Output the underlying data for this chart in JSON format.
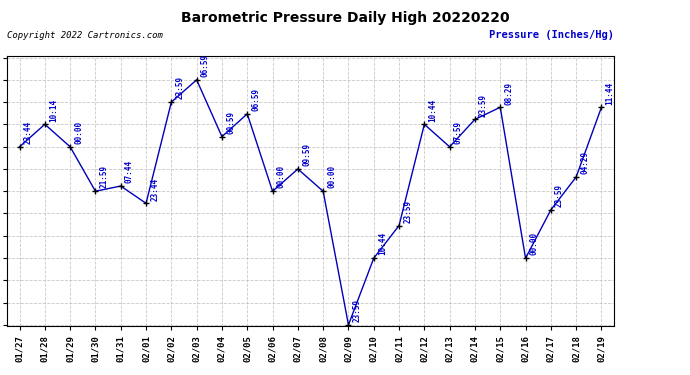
{
  "title": "Barometric Pressure Daily High 20220220",
  "ylabel": "Pressure (Inches/Hg)",
  "copyright": "Copyright 2022 Cartronics.com",
  "dates": [
    "01/27",
    "01/28",
    "01/29",
    "01/30",
    "01/31",
    "02/01",
    "02/02",
    "02/03",
    "02/04",
    "02/05",
    "02/06",
    "02/07",
    "02/08",
    "02/09",
    "02/10",
    "02/11",
    "02/12",
    "02/13",
    "02/14",
    "02/15",
    "02/16",
    "02/17",
    "02/18",
    "02/19"
  ],
  "times": [
    "23:44",
    "10:14",
    "00:00",
    "21:59",
    "07:44",
    "23:44",
    "23:59",
    "06:59",
    "00:59",
    "06:59",
    "00:00",
    "09:59",
    "00:00",
    "23:59",
    "10:44",
    "23:59",
    "10:44",
    "07:59",
    "23:59",
    "08:29",
    "00:00",
    "23:59",
    "04:29",
    "11:44"
  ],
  "values": [
    30.22,
    30.302,
    30.22,
    30.058,
    30.077,
    30.014,
    30.383,
    30.464,
    30.257,
    30.34,
    30.058,
    30.139,
    30.058,
    29.571,
    29.814,
    29.933,
    30.302,
    30.22,
    30.32,
    30.364,
    29.814,
    29.99,
    30.11,
    30.364
  ],
  "ylim_min": 29.571,
  "ylim_max": 30.545,
  "yticks": [
    30.545,
    30.464,
    30.383,
    30.302,
    30.22,
    30.139,
    30.058,
    29.977,
    29.896,
    29.814,
    29.733,
    29.652,
    29.571
  ],
  "line_color": "#0000bb",
  "marker_color": "#000000",
  "title_color": "#000000",
  "ylabel_color": "#0000cc",
  "copyright_color": "#000000",
  "annotation_color": "#0000cc",
  "bg_color": "#ffffff",
  "grid_color": "#bbbbbb"
}
